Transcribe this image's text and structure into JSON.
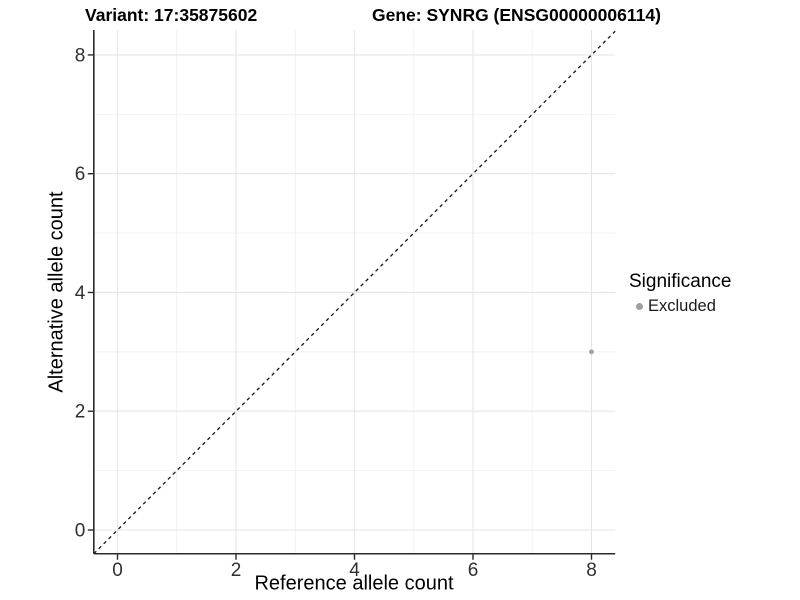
{
  "titles": {
    "variant": "Variant: 17:35875602",
    "gene": "Gene: SYNRG (ENSG00000006114)"
  },
  "axes": {
    "x_label": "Reference allele count",
    "y_label": "Alternative allele count"
  },
  "legend": {
    "title": "Significance",
    "items": [
      {
        "label": "Excluded",
        "color": "#a0a0a0"
      }
    ]
  },
  "chart_data": {
    "type": "scatter",
    "title": "Variant: 17:35875602",
    "subtitle": "Gene: SYNRG (ENSG00000006114)",
    "xlabel": "Reference allele count",
    "ylabel": "Alternative allele count",
    "xlim": [
      -0.4,
      8.4
    ],
    "ylim": [
      -0.4,
      8.42
    ],
    "x_ticks": [
      0,
      2,
      4,
      6,
      8
    ],
    "y_ticks": [
      0,
      2,
      4,
      6,
      8
    ],
    "x_minor_ticks": [
      1,
      3,
      5,
      7
    ],
    "y_minor_ticks": [
      1,
      3,
      5,
      7
    ],
    "grid": true,
    "legend_position": "right",
    "series": [
      {
        "name": "Excluded",
        "color": "#a0a0a0",
        "points": [
          {
            "x": 8,
            "y": 3
          }
        ]
      }
    ],
    "reference_line": {
      "kind": "identity",
      "slope": 1,
      "intercept": 0,
      "style": "dashed",
      "color": "#141414"
    },
    "colors": {
      "background": "#ffffff",
      "major_grid": "#e6e6e6",
      "minor_grid": "#f2f2f2",
      "axis_line": "#2b2b2b",
      "tick_label": "#303030",
      "point": "#a0a0a0"
    }
  }
}
